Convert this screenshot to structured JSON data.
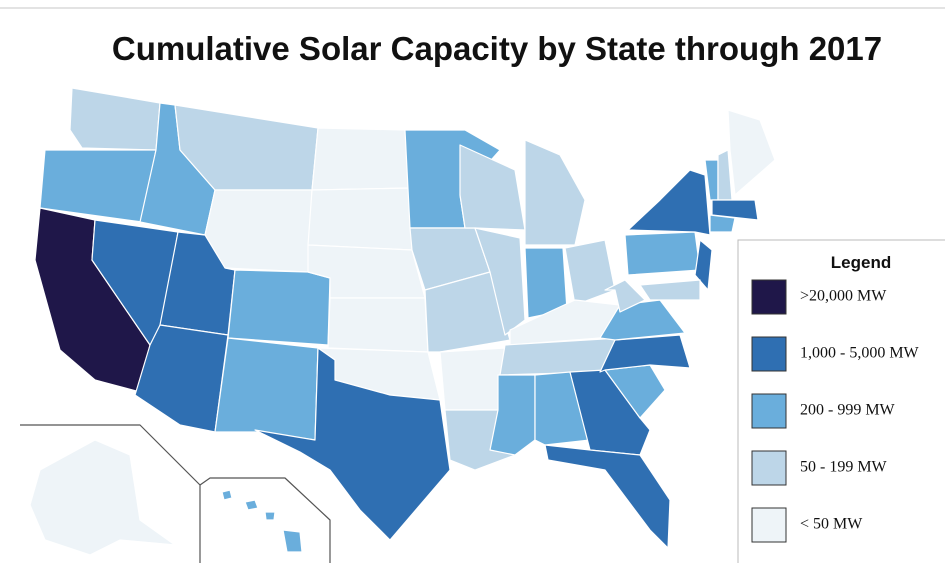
{
  "title": "Cumulative Solar Capacity by State through 2017",
  "legend": {
    "title": "Legend",
    "items": [
      {
        "label": ">20,000 MW",
        "color": "#1f1749"
      },
      {
        "label": "1,000 - 5,000 MW",
        "color": "#2f6fb2"
      },
      {
        "label": "200 - 999 MW",
        "color": "#6aaedc"
      },
      {
        "label": "50 - 199 MW",
        "color": "#bdd6e8"
      },
      {
        "label": "< 50 MW",
        "color": "#eef4f8"
      }
    ]
  }
}
